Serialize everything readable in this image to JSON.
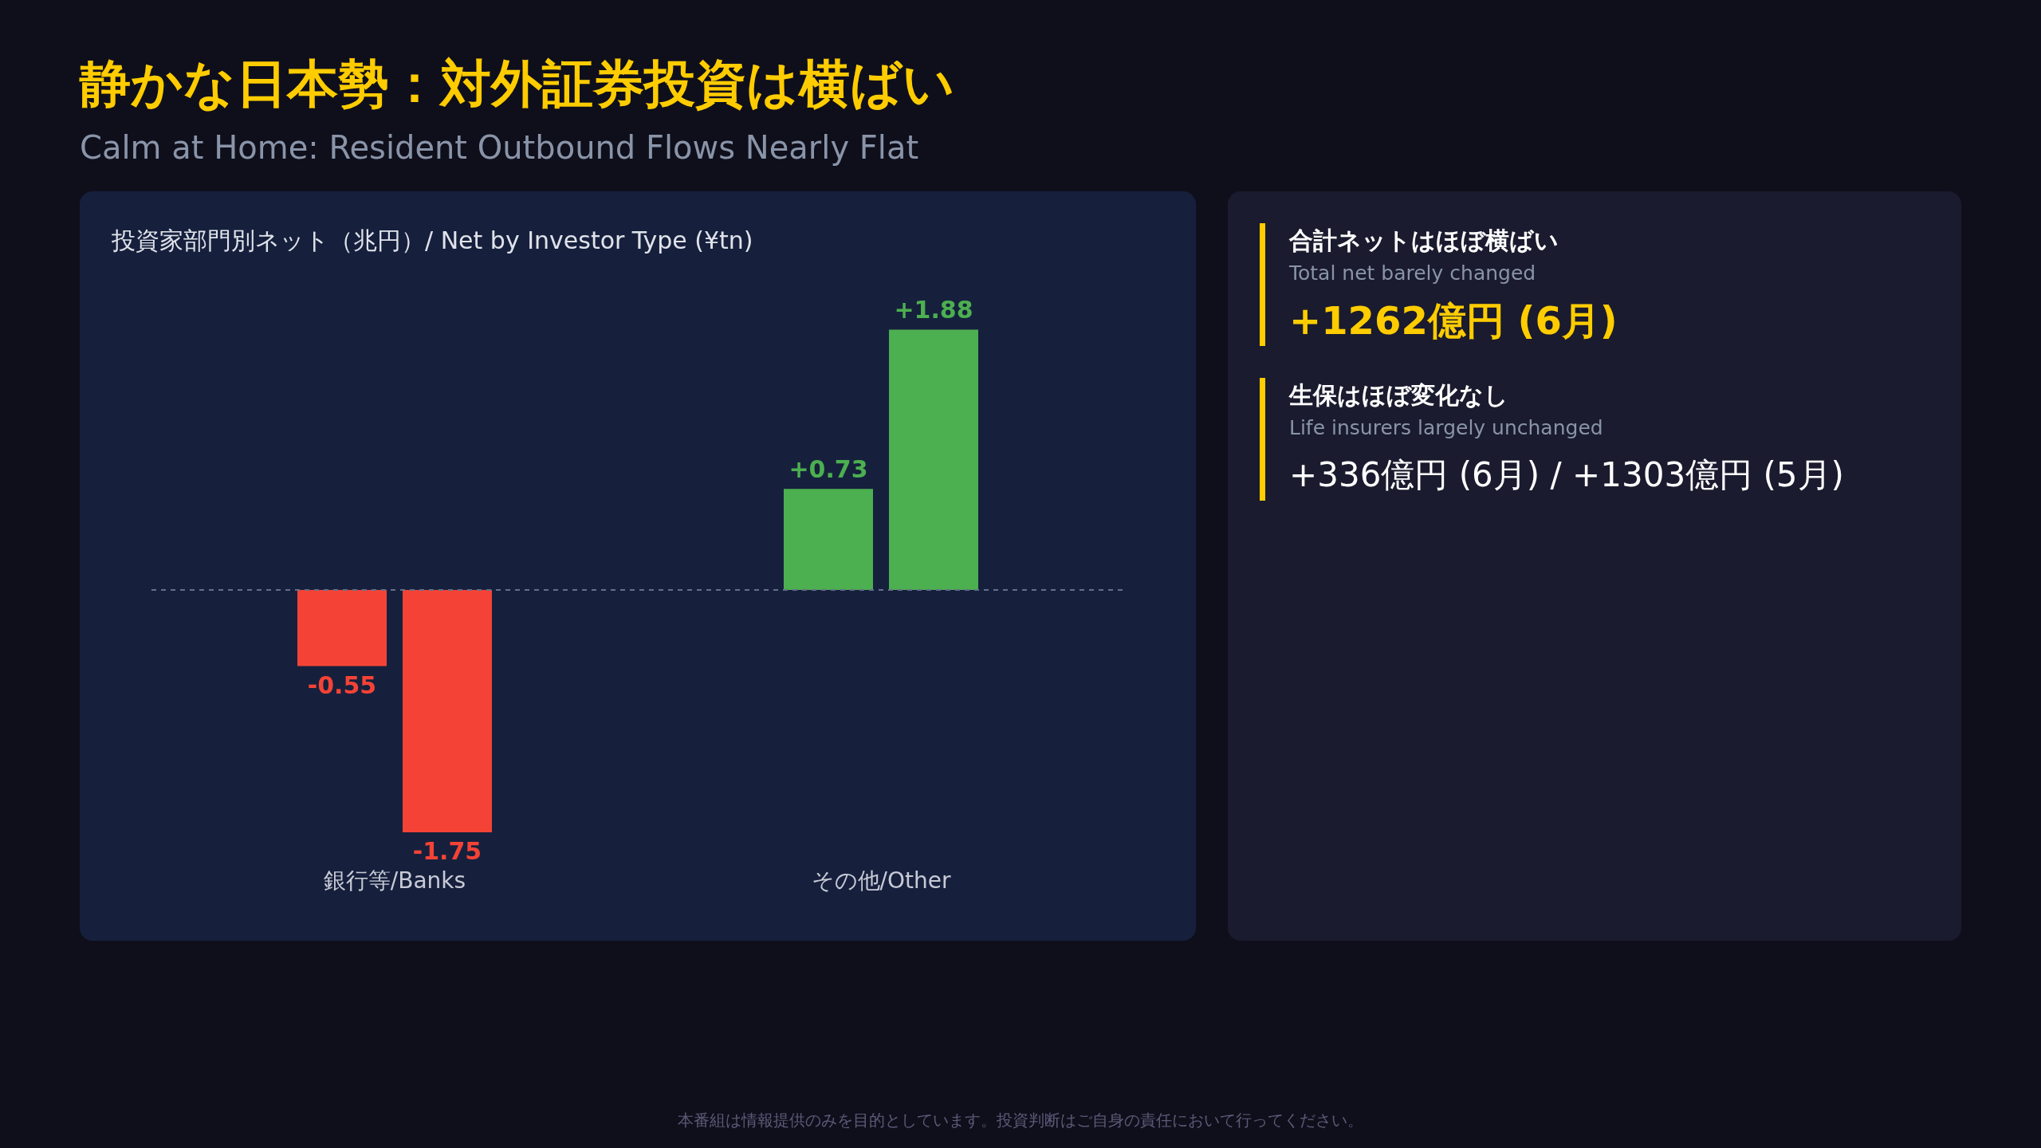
{
  "chart_data": [
    {
      "type": "bar",
      "title": "静かな日本勢：対外証券投資は横ばい",
      "subtitle": "Calm at Home: Resident Outbound Flows Nearly Flat",
      "categories": [
        "銀行等/Banks",
        "その他/Other"
      ],
      "series": [
        {
          "colors": [
            "#f44336",
            "#4caf50"
          ],
          "values": [
            -0.55,
            0.73
          ],
          "value_labels": [
            "-0.55",
            "+0.73"
          ]
        },
        {
          "colors": [
            "#f44336",
            "#4caf50"
          ],
          "values": [
            -1.75,
            1.88
          ],
          "value_labels": [
            "-1.75",
            "+1.88"
          ]
        }
      ],
      "ref_lines": [
        {
          "axis": "y",
          "value": 0,
          "label": null,
          "color": "#64708a",
          "line_style": "dashed"
        }
      ],
      "grid": false,
      "legend": false,
      "tick_labels": "x",
      "annotations": [
        "投資家部門別ネット（兆円）/ Net by Investor Type (¥tn)",
        "本番組は情報提供のみを目的としています。投資判断はご自身の責任において行ってください。"
      ]
    },
    {
      "type": "other",
      "annotations": [
        "合計ネットはほぼ横ばい",
        "Total net barely changed",
        "+1262億円 (6月)",
        "生保はほぼ変化なし",
        "Life insurers largely unchanged",
        "+336億円 (6月) / +1303億円 (5月)"
      ]
    }
  ]
}
